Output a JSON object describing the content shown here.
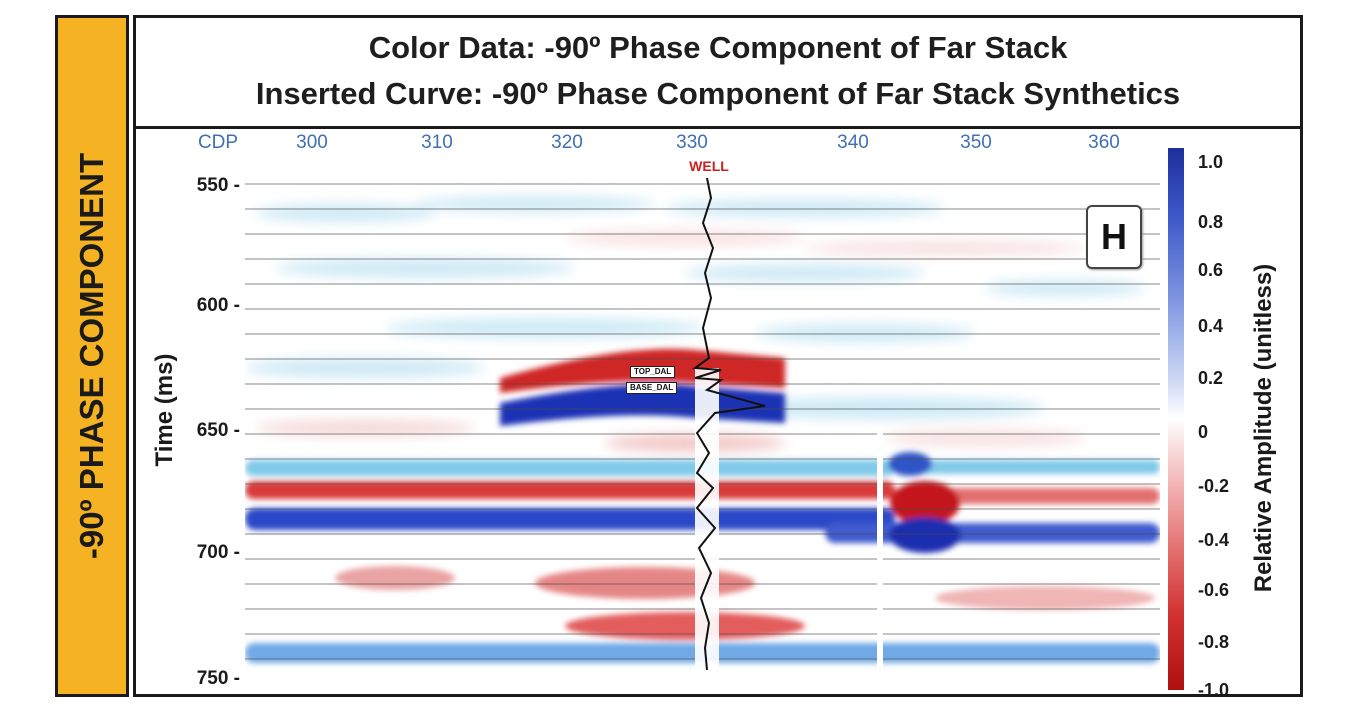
{
  "side_label": "-90º PHASE COMPONENT",
  "title": {
    "line1": "Color Data: -90º Phase Component of Far Stack",
    "line2": "Inserted Curve: -90º Phase Component of Far Stack Synthetics"
  },
  "cdp_axis": {
    "label": "CDP",
    "ticks": [
      "300",
      "310",
      "320",
      "330",
      "340",
      "350",
      "360"
    ]
  },
  "well_label": "WELL",
  "time_axis": {
    "label": "Time (ms)",
    "ticks": [
      "550 -",
      "600 -",
      "650 -",
      "700 -",
      "750 -"
    ]
  },
  "panel_letter": "H",
  "horizons": {
    "top": "TOP_DAL",
    "base": "BASE_DAL"
  },
  "colorbar": {
    "label": "Relative Amplitude (unitless)",
    "ticks": [
      "1.0",
      "0.8",
      "0.6",
      "0.4",
      "0.2",
      "0",
      "-0.2",
      "-0.4",
      "-0.6",
      "-0.8",
      "-1.0"
    ],
    "positive_color": "#1e2f9a",
    "negative_color": "#b00f0f"
  },
  "colors": {
    "side_panel": "#f5b324",
    "cdp_text": "#3f6fb5",
    "well_text": "#cc1f1f"
  }
}
